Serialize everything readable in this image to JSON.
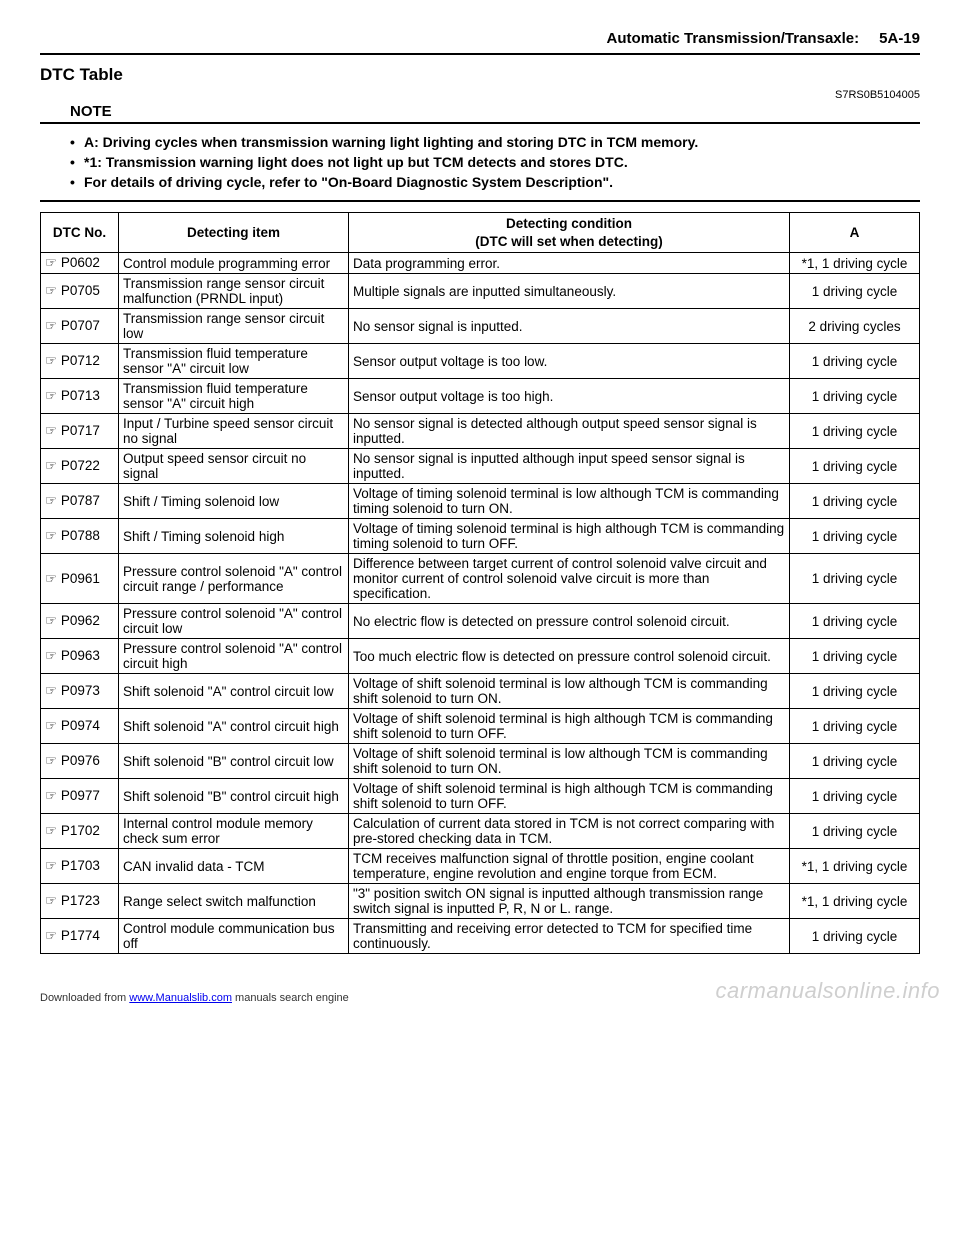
{
  "header": {
    "title": "Automatic Transmission/Transaxle:",
    "page": "5A-19"
  },
  "section_title": "DTC Table",
  "doc_id": "S7RS0B5104005",
  "note_label": "NOTE",
  "bullets": [
    "A: Driving cycles when transmission warning light lighting and storing DTC in TCM memory.",
    "*1: Transmission warning light does not light up but TCM detects and stores DTC.",
    "For details of driving cycle, refer to \"On-Board Diagnostic System Description\"."
  ],
  "table": {
    "columns": [
      "DTC No.",
      "Detecting item",
      "Detecting condition\n(DTC will set when detecting)",
      "A"
    ],
    "rows": [
      [
        "P0602",
        "Control module programming error",
        "Data programming error.",
        "*1, 1 driving cycle"
      ],
      [
        "P0705",
        "Transmission range sensor circuit malfunction (PRNDL input)",
        "Multiple signals are inputted simultaneously.",
        "1 driving cycle"
      ],
      [
        "P0707",
        "Transmission range sensor circuit low",
        "No sensor signal is inputted.",
        "2 driving cycles"
      ],
      [
        "P0712",
        "Transmission fluid temperature sensor \"A\" circuit low",
        "Sensor output voltage is too low.",
        "1 driving cycle"
      ],
      [
        "P0713",
        "Transmission fluid temperature sensor \"A\" circuit high",
        "Sensor output voltage is too high.",
        "1 driving cycle"
      ],
      [
        "P0717",
        "Input / Turbine speed sensor circuit no signal",
        "No sensor signal is detected although output speed sensor signal is inputted.",
        "1 driving cycle"
      ],
      [
        "P0722",
        "Output speed sensor circuit no signal",
        "No sensor signal is inputted although input speed sensor signal is inputted.",
        "1 driving cycle"
      ],
      [
        "P0787",
        "Shift / Timing solenoid low",
        "Voltage of timing solenoid terminal is low although TCM is commanding timing solenoid to turn ON.",
        "1 driving cycle"
      ],
      [
        "P0788",
        "Shift / Timing solenoid high",
        "Voltage of timing solenoid terminal is high although TCM is commanding timing solenoid to turn OFF.",
        "1 driving cycle"
      ],
      [
        "P0961",
        "Pressure control solenoid \"A\" control circuit range / performance",
        "Difference between target current of control solenoid valve circuit and monitor current of control solenoid valve circuit is more than specification.",
        "1 driving cycle"
      ],
      [
        "P0962",
        "Pressure control solenoid \"A\" control circuit low",
        "No electric flow is detected on pressure control solenoid circuit.",
        "1 driving cycle"
      ],
      [
        "P0963",
        "Pressure control solenoid \"A\" control circuit high",
        "Too much electric flow is detected on pressure control solenoid circuit.",
        "1 driving cycle"
      ],
      [
        "P0973",
        "Shift solenoid \"A\" control circuit low",
        "Voltage of shift solenoid terminal is low although TCM is commanding shift solenoid to turn ON.",
        "1 driving cycle"
      ],
      [
        "P0974",
        "Shift solenoid \"A\" control circuit high",
        "Voltage of shift solenoid terminal is high although TCM is commanding shift solenoid to turn OFF.",
        "1 driving cycle"
      ],
      [
        "P0976",
        "Shift solenoid \"B\" control circuit low",
        "Voltage of shift solenoid terminal is low although TCM is commanding shift solenoid to turn ON.",
        "1 driving cycle"
      ],
      [
        "P0977",
        "Shift solenoid \"B\" control circuit high",
        "Voltage of shift solenoid terminal is high although TCM is commanding shift solenoid to turn OFF.",
        "1 driving cycle"
      ],
      [
        "P1702",
        "Internal control module memory check sum error",
        "Calculation of current data stored in TCM is not correct comparing with pre-stored checking data in TCM.",
        "1 driving cycle"
      ],
      [
        "P1703",
        "CAN invalid data - TCM",
        "TCM receives malfunction signal of throttle position, engine coolant temperature, engine revolution and engine torque from ECM.",
        "*1, 1 driving cycle"
      ],
      [
        "P1723",
        "Range select switch malfunction",
        "\"3\" position switch ON signal is inputted although transmission range switch signal is inputted P, R, N or L. range.",
        "*1, 1 driving cycle"
      ],
      [
        "P1774",
        "Control module communication bus off",
        "Transmitting and receiving error detected to TCM for specified time continuously.",
        "1 driving cycle"
      ]
    ]
  },
  "footer": {
    "left_pre": "Downloaded from ",
    "left_link": "www.Manualslib.com",
    "left_post": " manuals search engine"
  },
  "watermark": "carmanualsonline.info"
}
